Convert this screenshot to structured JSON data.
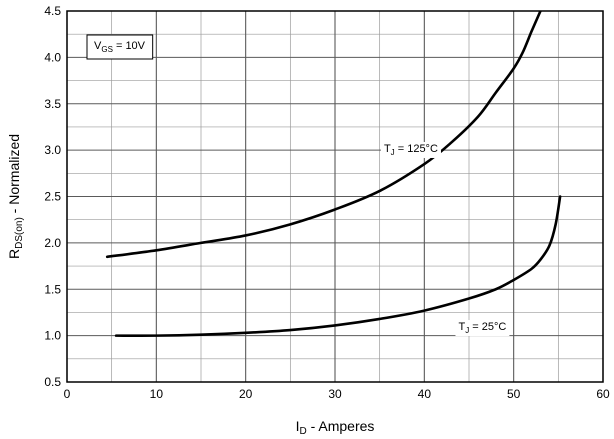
{
  "chart_data": {
    "type": "line",
    "title": "",
    "xlabel": {
      "main": "I",
      "sub": "D",
      "rest": " - Amperes"
    },
    "ylabel": {
      "main": "R",
      "sub": "DS(on)",
      "rest": " - Normalized"
    },
    "xlim": [
      0,
      60
    ],
    "ylim": [
      0.5,
      4.5
    ],
    "xticks": [
      0,
      10,
      20,
      30,
      40,
      50,
      60
    ],
    "xtick_labels": [
      "0",
      "10",
      "20",
      "30",
      "40",
      "50",
      "60"
    ],
    "xminor_step": 5,
    "yticks": [
      0.5,
      1.0,
      1.5,
      2.0,
      2.5,
      3.0,
      3.5,
      4.0,
      4.5
    ],
    "ytick_labels": [
      "0.5",
      "1.0",
      "1.5",
      "2.0",
      "2.5",
      "3.0",
      "3.5",
      "4.0",
      "4.5"
    ],
    "yminor_step": 0.25,
    "grid": true,
    "legend": {
      "main": "V",
      "sub": "GS",
      "rest": " = 10V",
      "placement": "top-left"
    },
    "series": [
      {
        "label": {
          "main": "T",
          "sub": "J",
          "rest": " = 125°C"
        },
        "label_at": [
          38.5,
          2.98
        ],
        "points": [
          [
            4.5,
            1.85
          ],
          [
            10,
            1.92
          ],
          [
            15,
            2.0
          ],
          [
            20,
            2.08
          ],
          [
            25,
            2.2
          ],
          [
            30,
            2.36
          ],
          [
            35,
            2.56
          ],
          [
            40,
            2.85
          ],
          [
            43,
            3.08
          ],
          [
            46,
            3.36
          ],
          [
            48,
            3.62
          ],
          [
            50,
            3.88
          ],
          [
            51,
            4.05
          ],
          [
            52,
            4.28
          ],
          [
            53,
            4.5
          ]
        ]
      },
      {
        "label": {
          "main": "T",
          "sub": "J",
          "rest": " = 25°C"
        },
        "label_at": [
          46.5,
          1.06
        ],
        "points": [
          [
            5.5,
            1.0
          ],
          [
            10,
            1.0
          ],
          [
            15,
            1.01
          ],
          [
            20,
            1.03
          ],
          [
            25,
            1.06
          ],
          [
            30,
            1.11
          ],
          [
            35,
            1.18
          ],
          [
            40,
            1.27
          ],
          [
            45,
            1.4
          ],
          [
            48,
            1.5
          ],
          [
            50,
            1.6
          ],
          [
            52,
            1.72
          ],
          [
            53,
            1.82
          ],
          [
            54,
            1.97
          ],
          [
            54.7,
            2.2
          ],
          [
            55.2,
            2.5
          ]
        ]
      }
    ]
  }
}
